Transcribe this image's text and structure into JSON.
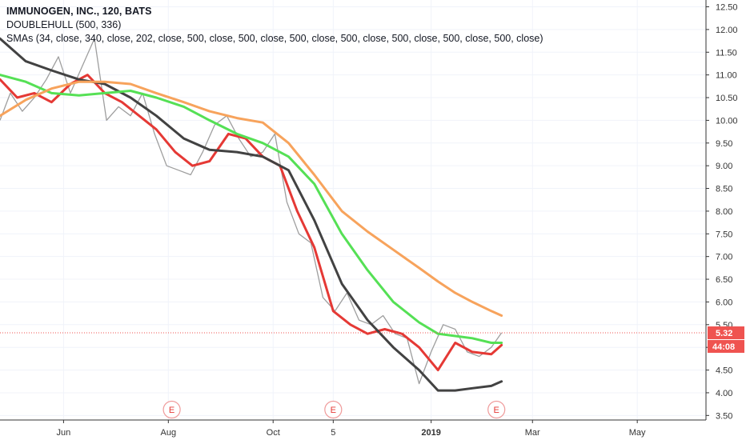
{
  "legend": {
    "title": "IMMUNOGEN, INC., 120, BATS",
    "indicator1": "DOUBLEHULL (500, 336)",
    "indicator2": "SMAs (34, close, 340, close, 202, close, 500, close, 500, close, 500, close, 500, close, 500, close, 500, close, 500, close)"
  },
  "price_tags": {
    "last": {
      "label": "5.32",
      "color": "#ef5350"
    },
    "countdown": {
      "label": "44:08",
      "color": "#ef5350"
    }
  },
  "events": [
    {
      "label": "E",
      "date": "2018-08-03"
    },
    {
      "label": "E",
      "date": "2018-11-05"
    },
    {
      "label": "E",
      "date": "2019-02-08"
    }
  ],
  "chart_data": {
    "type": "line",
    "title": "IMMUNOGEN, INC., 120, BATS",
    "xlabel": "",
    "ylabel": "",
    "xlim": [
      "2018-04-25",
      "2019-06-10"
    ],
    "ylim": [
      3.4,
      12.65
    ],
    "x_ticks": [
      {
        "label": "Jun",
        "date": "2018-06-01",
        "bold": false
      },
      {
        "label": "Aug",
        "date": "2018-08-01",
        "bold": false
      },
      {
        "label": "Oct",
        "date": "2018-10-01",
        "bold": false
      },
      {
        "label": "5",
        "date": "2018-11-05",
        "bold": false
      },
      {
        "label": "2019",
        "date": "2019-01-01",
        "bold": true
      },
      {
        "label": "Mar",
        "date": "2019-03-01",
        "bold": false
      },
      {
        "label": "May",
        "date": "2019-05-01",
        "bold": false
      }
    ],
    "y_ticks": [
      3.5,
      4.0,
      4.5,
      5.0,
      5.5,
      6.0,
      6.5,
      7.0,
      7.5,
      8.0,
      8.5,
      9.0,
      9.5,
      10.0,
      10.5,
      11.0,
      11.5,
      12.0,
      12.5
    ],
    "last_price": 5.32,
    "grid": true,
    "price_series": {
      "color": "#9e9e9e",
      "x": [
        "2018-04-25",
        "2018-05-01",
        "2018-05-08",
        "2018-05-15",
        "2018-05-22",
        "2018-05-29",
        "2018-06-05",
        "2018-06-12",
        "2018-06-19",
        "2018-06-26",
        "2018-07-03",
        "2018-07-10",
        "2018-07-17",
        "2018-07-24",
        "2018-07-31",
        "2018-08-07",
        "2018-08-14",
        "2018-08-21",
        "2018-08-28",
        "2018-09-04",
        "2018-09-11",
        "2018-09-18",
        "2018-09-25",
        "2018-10-02",
        "2018-10-09",
        "2018-10-16",
        "2018-10-23",
        "2018-10-30",
        "2018-11-06",
        "2018-11-13",
        "2018-11-20",
        "2018-11-27",
        "2018-12-04",
        "2018-12-11",
        "2018-12-18",
        "2018-12-25",
        "2019-01-01",
        "2019-01-08",
        "2019-01-15",
        "2019-01-22",
        "2019-01-29",
        "2019-02-05",
        "2019-02-11"
      ],
      "values": [
        10.0,
        10.6,
        10.2,
        10.5,
        10.9,
        11.4,
        10.6,
        11.2,
        11.8,
        10.0,
        10.3,
        10.1,
        10.6,
        9.7,
        9.0,
        8.9,
        8.8,
        9.3,
        9.9,
        10.1,
        9.6,
        9.2,
        9.3,
        9.7,
        8.2,
        7.5,
        7.3,
        6.1,
        5.8,
        6.2,
        5.6,
        5.5,
        5.7,
        5.3,
        5.2,
        4.2,
        4.9,
        5.5,
        5.4,
        4.9,
        4.8,
        5.0,
        5.32
      ]
    },
    "series": [
      {
        "color": "#e53935",
        "x": [
          "2018-04-25",
          "2018-05-05",
          "2018-05-15",
          "2018-05-25",
          "2018-06-05",
          "2018-06-15",
          "2018-06-25",
          "2018-07-05",
          "2018-07-15",
          "2018-07-25",
          "2018-08-05",
          "2018-08-15",
          "2018-08-25",
          "2018-09-05",
          "2018-09-15",
          "2018-09-25",
          "2018-10-05",
          "2018-10-15",
          "2018-10-25",
          "2018-11-05",
          "2018-11-15",
          "2018-11-25",
          "2018-12-05",
          "2018-12-15",
          "2018-12-25",
          "2019-01-05",
          "2019-01-15",
          "2019-01-25",
          "2019-02-05",
          "2019-02-11"
        ],
        "values": [
          10.9,
          10.5,
          10.6,
          10.4,
          10.8,
          11.0,
          10.6,
          10.4,
          10.1,
          9.8,
          9.3,
          9.0,
          9.1,
          9.7,
          9.6,
          9.2,
          9.0,
          8.0,
          7.2,
          5.8,
          5.5,
          5.3,
          5.4,
          5.3,
          5.0,
          4.5,
          5.1,
          4.9,
          4.85,
          5.05
        ]
      },
      {
        "color": "#424242",
        "x": [
          "2018-04-25",
          "2018-05-10",
          "2018-05-25",
          "2018-06-10",
          "2018-06-25",
          "2018-07-10",
          "2018-07-25",
          "2018-08-10",
          "2018-08-25",
          "2018-09-10",
          "2018-09-25",
          "2018-10-10",
          "2018-10-25",
          "2018-11-10",
          "2018-11-25",
          "2018-12-10",
          "2018-12-25",
          "2019-01-05",
          "2019-01-15",
          "2019-01-25",
          "2019-02-05",
          "2019-02-11"
        ],
        "values": [
          11.8,
          11.3,
          11.1,
          10.9,
          10.8,
          10.5,
          10.1,
          9.6,
          9.35,
          9.3,
          9.2,
          8.9,
          7.8,
          6.4,
          5.6,
          5.0,
          4.5,
          4.05,
          4.05,
          4.1,
          4.15,
          4.25
        ]
      },
      {
        "color": "#55e055",
        "x": [
          "2018-04-25",
          "2018-05-10",
          "2018-05-25",
          "2018-06-10",
          "2018-06-25",
          "2018-07-10",
          "2018-07-25",
          "2018-08-10",
          "2018-08-25",
          "2018-09-10",
          "2018-09-25",
          "2018-10-10",
          "2018-10-25",
          "2018-11-10",
          "2018-11-25",
          "2018-12-10",
          "2018-12-25",
          "2019-01-05",
          "2019-01-15",
          "2019-01-25",
          "2019-02-05",
          "2019-02-11"
        ],
        "values": [
          11.0,
          10.85,
          10.6,
          10.55,
          10.6,
          10.65,
          10.5,
          10.3,
          10.0,
          9.7,
          9.5,
          9.2,
          8.6,
          7.5,
          6.7,
          6.0,
          5.55,
          5.3,
          5.25,
          5.2,
          5.1,
          5.1
        ]
      },
      {
        "color": "#f7a35c",
        "x": [
          "2018-04-25",
          "2018-05-10",
          "2018-05-25",
          "2018-06-10",
          "2018-06-25",
          "2018-07-10",
          "2018-07-25",
          "2018-08-10",
          "2018-08-25",
          "2018-09-10",
          "2018-09-25",
          "2018-10-10",
          "2018-10-25",
          "2018-11-10",
          "2018-11-25",
          "2018-12-10",
          "2018-12-25",
          "2019-01-05",
          "2019-01-15",
          "2019-01-25",
          "2019-02-05",
          "2019-02-11"
        ],
        "values": [
          10.1,
          10.45,
          10.7,
          10.85,
          10.85,
          10.8,
          10.6,
          10.4,
          10.2,
          10.05,
          9.95,
          9.5,
          8.8,
          8.0,
          7.55,
          7.15,
          6.75,
          6.45,
          6.2,
          6.0,
          5.8,
          5.7
        ]
      }
    ]
  }
}
